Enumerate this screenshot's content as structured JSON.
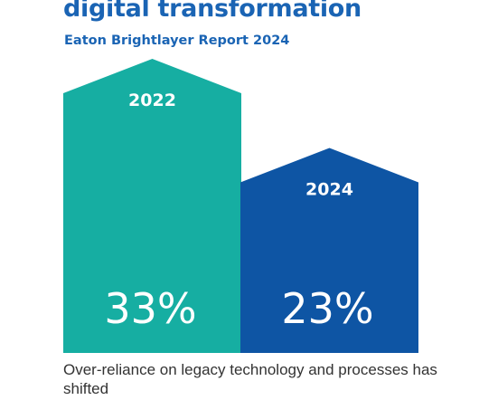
{
  "header": {
    "title": "digital transformation",
    "subtitle": "Eaton Brightlayer Report 2024"
  },
  "chart_data": {
    "type": "bar",
    "categories": [
      "2022",
      "2024"
    ],
    "values": [
      33,
      23
    ],
    "value_labels": [
      "33%",
      "23%"
    ],
    "colors": [
      "#16aea2",
      "#0e55a4"
    ],
    "title": "digital transformation",
    "subtitle": "Eaton Brightlayer Report 2024",
    "xlabel": "",
    "ylabel": "",
    "ylim": [
      0,
      33
    ],
    "grid": false,
    "legend": "none"
  },
  "caption": "Over-reliance on legacy technology and processes has shifted"
}
